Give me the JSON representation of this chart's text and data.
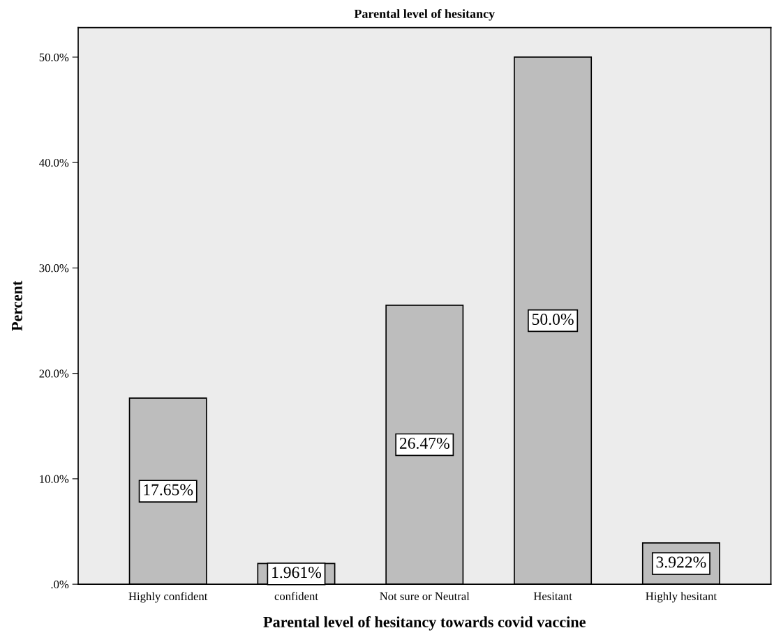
{
  "chart_data": {
    "type": "bar",
    "title": "Parental level of hesitancy",
    "xlabel": "Parental level of hesitancy towards covid vaccine",
    "ylabel": "Percent",
    "categories": [
      "Highly confident",
      "confident",
      "Not sure or Neutral",
      "Hesitant",
      "Highly hesitant"
    ],
    "values": [
      17.65,
      1.961,
      26.47,
      50.0,
      3.922
    ],
    "value_labels": [
      "17.65%",
      "1.961%",
      "26.47%",
      "50.0%",
      "3.922%"
    ],
    "color": "#bdbdbd",
    "ylim": [
      0,
      52.8
    ],
    "yticks": [
      {
        "value": 0,
        "label": ".0%"
      },
      {
        "value": 10,
        "label": "10.0%"
      },
      {
        "value": 20,
        "label": "20.0%"
      },
      {
        "value": 30,
        "label": "30.0%"
      },
      {
        "value": 40,
        "label": "40.0%"
      },
      {
        "value": 50,
        "label": "50.0%"
      }
    ],
    "grid": false,
    "legend": false
  }
}
